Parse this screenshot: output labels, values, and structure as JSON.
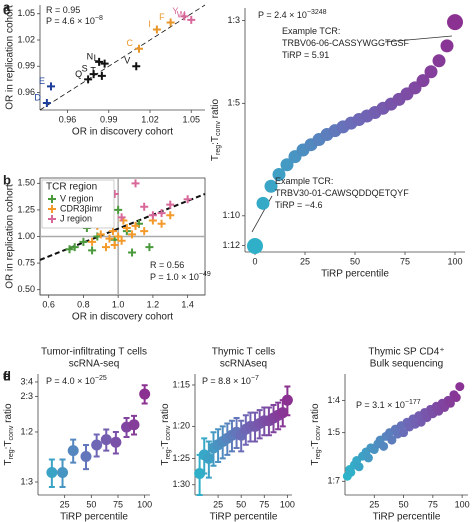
{
  "chart_data": [
    {
      "type": "scatter",
      "panel": "a",
      "marker": "cross",
      "x_label": "OR in discovery cohort",
      "y_label": "OR in replication cohort",
      "xlim": [
        0.94,
        1.06
      ],
      "ylim": [
        0.94,
        1.06
      ],
      "xticks": [
        0.96,
        0.99,
        1.02,
        1.05
      ],
      "yticks": [
        0.96,
        0.99,
        1.02,
        1.05
      ],
      "annotations": [
        {
          "text": "R = 0.95"
        },
        {
          "text": "P = 4.6 × 10",
          "sup": "−8"
        }
      ],
      "fit_line": {
        "x": [
          0.94,
          1.06
        ],
        "y": [
          0.94,
          1.06
        ]
      },
      "series": [
        {
          "color": "#1f3f9a",
          "x": [
            0.948,
            0.945
          ],
          "values": [
            0.967,
            0.948
          ],
          "point_labels": [
            "E",
            "D"
          ]
        },
        {
          "color": "#111111",
          "x": [
            0.975,
            0.979,
            0.985,
            0.983,
            0.987,
            1.01
          ],
          "values": [
            0.975,
            0.981,
            0.979,
            0.995,
            0.993,
            0.99
          ],
          "point_labels": [
            "Q",
            "S",
            "T",
            "N",
            "L",
            "V"
          ]
        },
        {
          "color": "#e8962a",
          "x": [
            1.012,
            1.025,
            1.035
          ],
          "values": [
            1.01,
            1.032,
            1.04
          ],
          "point_labels": [
            "C",
            "I",
            "F"
          ]
        },
        {
          "color": "#d9689a",
          "x": [
            1.045,
            1.05
          ],
          "values": [
            1.047,
            1.043
          ],
          "point_labels": [
            "Y",
            "W"
          ]
        }
      ]
    },
    {
      "type": "scatter",
      "panel": "b",
      "marker": "cross",
      "x_label": "OR in discovery cohort",
      "y_label": "OR in replication cohort",
      "xlim": [
        0.55,
        1.5
      ],
      "ylim": [
        0.45,
        1.55
      ],
      "xticks": [
        0.6,
        0.8,
        {
          "value": 1,
          "label": "1.0"
        },
        1.2,
        1.4
      ],
      "yticks": [
        {
          "value": 0.5,
          "label": "0.50"
        },
        0.75,
        {
          "value": 1,
          "label": "1.00"
        },
        1.25,
        {
          "value": 1.5,
          "label": "1.50"
        }
      ],
      "ref_x": 1,
      "ref_y": 1,
      "legend_title": "TCR region",
      "fit_line": {
        "x": [
          0.55,
          1.5
        ],
        "y": [
          0.78,
          1.4
        ]
      },
      "annotations": [
        {
          "text": "R = 0.56"
        },
        {
          "text": "P = 1.0 × 10",
          "sup": "−49"
        }
      ],
      "series": [
        {
          "name": "V region",
          "color": "#4a9a3c",
          "x": [
            0.72,
            0.75,
            0.8,
            0.85,
            0.88,
            0.92,
            0.95,
            0.98,
            1.0,
            1.05,
            1.08,
            1.12,
            0.9,
            1.18,
            0.82
          ],
          "values": [
            0.88,
            0.9,
            0.95,
            0.87,
            1.0,
            1.15,
            1.22,
            0.97,
            1.25,
            1.05,
            0.85,
            1.12,
            1.35,
            0.9,
            1.08
          ]
        },
        {
          "name": "CDR3βimr",
          "color": "#f39a2b",
          "x": [
            0.85,
            0.9,
            0.95,
            0.97,
            1.0,
            1.02,
            1.05,
            1.08,
            1.1,
            1.15,
            1.2,
            0.93,
            1.25,
            1.3,
            0.88,
            1.03,
            0.98
          ],
          "values": [
            0.95,
            1.02,
            0.98,
            1.05,
            1.0,
            0.96,
            1.08,
            1.02,
            1.1,
            1.05,
            1.15,
            0.9,
            1.12,
            1.2,
            1.1,
            1.15,
            0.92
          ]
        },
        {
          "name": "J region",
          "color": "#d9689a",
          "x": [
            1.1,
            1.2,
            1.25,
            1.3,
            1.4,
            1.02,
            1.15,
            0.98
          ],
          "values": [
            1.5,
            1.2,
            1.22,
            1.3,
            1.35,
            1.18,
            1.28,
            1.4
          ]
        }
      ]
    },
    {
      "type": "scatter",
      "panel": "c",
      "marker": "circle",
      "log_y": true,
      "colormap": [
        "#2ab7ca",
        "#6d6ab8",
        "#8e2b8e"
      ],
      "x_label": "TiRP percentile",
      "y_label": [
        "T",
        "reg",
        ":T",
        "conv",
        " ratio"
      ],
      "xlim": [
        -5,
        105
      ],
      "ylim": [
        0.08,
        0.36
      ],
      "xticks": [
        0,
        25,
        50,
        75,
        100
      ],
      "yticks": [
        {
          "value": 0.3333,
          "label": "1:3"
        },
        {
          "value": 0.2,
          "label": "1:5"
        },
        {
          "value": 0.1,
          "label": "1:10"
        },
        {
          "value": 0.0833,
          "label": "1:12"
        }
      ],
      "annotations": [
        {
          "text": "P = 2.4 × 10",
          "sup": "−3248"
        },
        {
          "text": "Example TCR:"
        },
        {
          "text": "TRBV06-06-CASSYWGGTGSF"
        },
        {
          "text": "TiRP = 5.91"
        },
        {
          "text": "Example TCR:"
        },
        {
          "text": "TRBV30-01-CAWSQDDQETQYF"
        },
        {
          "text": "TiRP = −4.6"
        }
      ],
      "series": [
        {
          "x": [
            0,
            4,
            8,
            12,
            16,
            20,
            24,
            28,
            32,
            36,
            40,
            44,
            48,
            52,
            56,
            60,
            64,
            68,
            72,
            76,
            80,
            84,
            88,
            92,
            96,
            100
          ],
          "values": [
            0.083,
            0.108,
            0.12,
            0.129,
            0.137,
            0.144,
            0.15,
            0.155,
            0.16,
            0.165,
            0.169,
            0.173,
            0.177,
            0.181,
            0.185,
            0.189,
            0.194,
            0.199,
            0.205,
            0.212,
            0.22,
            0.23,
            0.243,
            0.26,
            0.285,
            0.33
          ]
        }
      ]
    },
    {
      "type": "scatter",
      "panel": "d",
      "marker": "circle",
      "log_y": true,
      "colormap": [
        "#2ab7ca",
        "#6d6ab8",
        "#8e2b8e"
      ],
      "title": [
        "Tumor-infiltrating T cells",
        "scRNA-seq"
      ],
      "x_label": "TiRP percentile",
      "y_label": [
        "T",
        "reg",
        ":T",
        "conv",
        " ratio"
      ],
      "xlim": [
        0,
        105
      ],
      "ylim": [
        0.3,
        0.8
      ],
      "xticks": [
        25,
        50,
        75,
        100
      ],
      "yticks": [
        {
          "value": 0.75,
          "label": "3:4"
        },
        {
          "value": 0.6667,
          "label": "2:3"
        },
        {
          "value": 0.5,
          "label": "1:2"
        },
        {
          "value": 0.3333,
          "label": "1:3"
        }
      ],
      "annotations": [
        {
          "text": "P = 4.0 × 10",
          "sup": "−25"
        }
      ],
      "series": [
        {
          "x": [
            13,
            23,
            33,
            45,
            55,
            64,
            73,
            83,
            90,
            100
          ],
          "values": [
            0.36,
            0.36,
            0.43,
            0.41,
            0.45,
            0.47,
            0.46,
            0.52,
            0.53,
            0.68
          ],
          "errors": [
            0.04,
            0.04,
            0.04,
            0.04,
            0.04,
            0.04,
            0.04,
            0.04,
            0.04,
            0.05
          ]
        }
      ]
    },
    {
      "type": "scatter",
      "panel": "e",
      "marker": "circle",
      "log_y": true,
      "colormap": [
        "#2ab7ca",
        "#6d6ab8",
        "#8e2b8e"
      ],
      "title": [
        "Thymic T cells",
        "scRNAseq"
      ],
      "x_label": "TiRP percentile",
      "y_label": [
        "T",
        "reg",
        ":T",
        "conv",
        " ratio"
      ],
      "xlim": [
        0,
        105
      ],
      "ylim": [
        0.031,
        0.072
      ],
      "xticks": [
        25,
        50,
        75,
        100
      ],
      "yticks": [
        {
          "value": 0.0667,
          "label": "1:15"
        },
        {
          "value": 0.05,
          "label": "1:20"
        },
        {
          "value": 0.04,
          "label": "1:25"
        },
        {
          "value": 0.0333,
          "label": "1:30"
        }
      ],
      "annotations": [
        {
          "text": "P = 8.8 × 10",
          "sup": "−7"
        }
      ],
      "series": [
        {
          "x": [
            5,
            10,
            15,
            20,
            25,
            30,
            35,
            40,
            45,
            50,
            55,
            60,
            65,
            70,
            75,
            80,
            85,
            90,
            95,
            100
          ],
          "values": [
            0.036,
            0.041,
            0.04,
            0.043,
            0.044,
            0.045,
            0.046,
            0.047,
            0.048,
            0.047,
            0.049,
            0.05,
            0.05,
            0.051,
            0.052,
            0.052,
            0.053,
            0.054,
            0.055,
            0.06
          ],
          "errors": [
            0.005,
            0.005,
            0.005,
            0.005,
            0.005,
            0.005,
            0.005,
            0.005,
            0.005,
            0.005,
            0.005,
            0.005,
            0.005,
            0.005,
            0.005,
            0.005,
            0.005,
            0.005,
            0.005,
            0.006
          ]
        }
      ]
    },
    {
      "type": "scatter",
      "panel": "f",
      "marker": "circle",
      "log_y": true,
      "colormap": [
        "#2ab7ca",
        "#6d6ab8",
        "#8e2b8e"
      ],
      "title": [
        "Thymic SP CD4⁺",
        "Bulk sequencing"
      ],
      "x_label": "TiRP percentile",
      "y_label": [
        "T",
        "reg",
        ":T",
        "conv",
        " ratio"
      ],
      "xlim": [
        0,
        105
      ],
      "ylim": [
        0.13,
        0.3
      ],
      "xticks": [
        25,
        50,
        75,
        100
      ],
      "yticks": [
        {
          "value": 0.25,
          "label": "1:4"
        },
        {
          "value": 0.2,
          "label": "1:5"
        },
        {
          "value": 0.1429,
          "label": "1:7"
        }
      ],
      "annotations": [
        {
          "text": "P = 3.1 × 10",
          "sup": "−177"
        }
      ],
      "series": [
        {
          "x": [
            2,
            4,
            5,
            8,
            10,
            12,
            15,
            18,
            20,
            22,
            25,
            28,
            30,
            33,
            35,
            38,
            40,
            43,
            45,
            48,
            50,
            53,
            55,
            58,
            60,
            63,
            65,
            68,
            70,
            73,
            75,
            78,
            80,
            83,
            85,
            88,
            90,
            93,
            95,
            98
          ],
          "values": [
            0.148,
            0.155,
            0.152,
            0.16,
            0.165,
            0.158,
            0.17,
            0.175,
            0.168,
            0.18,
            0.178,
            0.185,
            0.19,
            0.182,
            0.195,
            0.2,
            0.19,
            0.205,
            0.198,
            0.21,
            0.2,
            0.215,
            0.208,
            0.22,
            0.212,
            0.225,
            0.215,
            0.23,
            0.222,
            0.235,
            0.228,
            0.24,
            0.232,
            0.245,
            0.238,
            0.25,
            0.245,
            0.26,
            0.255,
            0.275
          ]
        }
      ]
    }
  ]
}
